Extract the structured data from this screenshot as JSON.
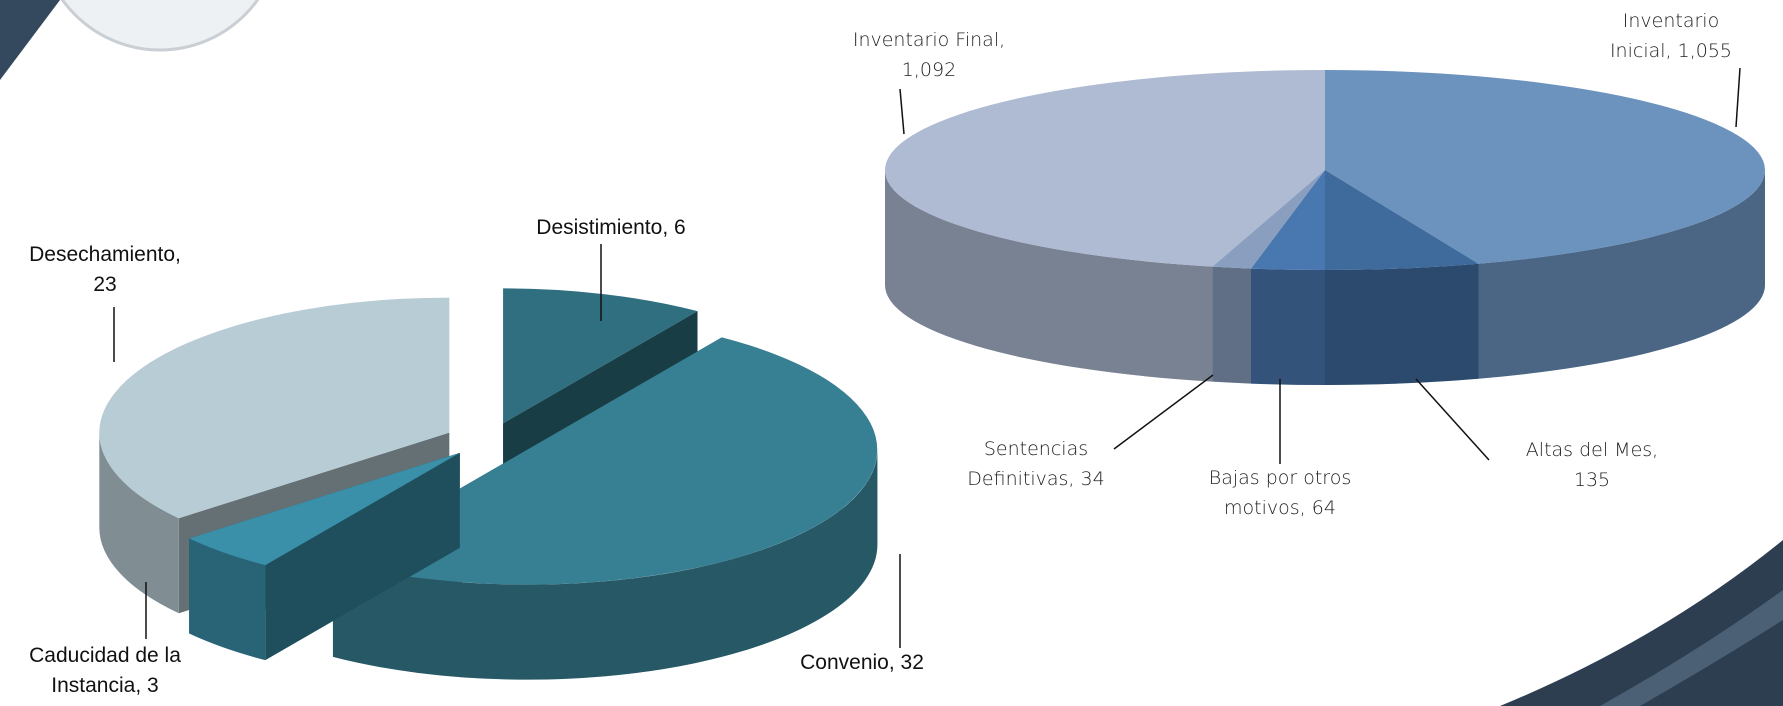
{
  "chart_data": [
    {
      "type": "pie",
      "categories": [
        "Desistimiento",
        "Convenio",
        "Caducidad de la Instancia",
        "Desechamiento"
      ],
      "values": [
        6,
        32,
        3,
        23
      ],
      "colors": [
        "#2f6f7f",
        "#377f93",
        "#3a90a9",
        "#b8ccd5"
      ],
      "label_separator": ","
    },
    {
      "type": "pie",
      "categories": [
        "Inventario Inicial",
        "Altas del Mes",
        "Bajas por otros motivos",
        "Sentencias Definitivas",
        "Inventario Final"
      ],
      "values": [
        1055,
        135,
        64,
        34,
        1092
      ],
      "value_labels": [
        "1,055",
        "135",
        "64",
        "34",
        "1,092"
      ],
      "colors": [
        "#6b93be",
        "#3e6a9c",
        "#4978b0",
        "#8a9fc0",
        "#aebbd3"
      ],
      "label_separator": ","
    }
  ]
}
